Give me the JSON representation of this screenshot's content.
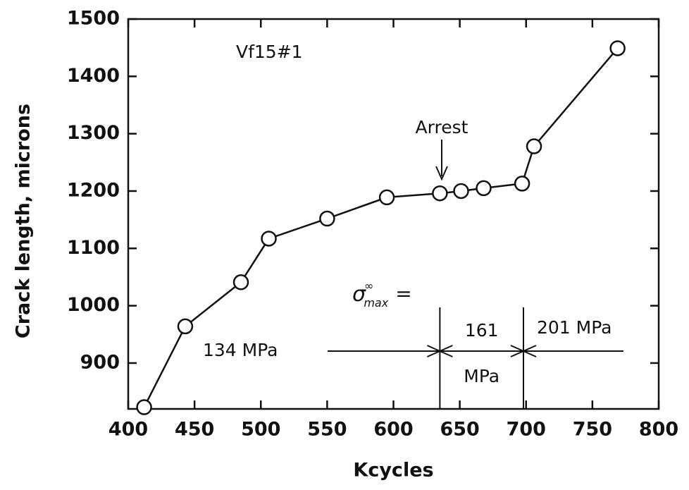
{
  "chart_data": {
    "type": "line",
    "xlabel": "Kcycles",
    "ylabel": "Crack length, microns",
    "x": [
      412,
      443,
      485,
      506,
      550,
      595,
      635,
      651,
      668,
      697,
      706,
      769
    ],
    "values": [
      823,
      964,
      1041,
      1117,
      1152,
      1189,
      1196,
      1200,
      1205,
      1213,
      1278,
      1449
    ],
    "xlim": [
      400,
      800
    ],
    "ylim": [
      820,
      1500
    ],
    "xticks": [
      400,
      450,
      500,
      550,
      600,
      650,
      700,
      750,
      800
    ],
    "yticks": [
      900,
      1000,
      1100,
      1200,
      1300,
      1400,
      1500
    ],
    "color": "#111111",
    "specimen": "Vf15#1",
    "arrest_label": "Arrest",
    "stress_label": {
      "symbol": "σ",
      "sup": "∞",
      "sub": "max",
      "eq": "="
    },
    "stress_changes": [
      635,
      698
    ],
    "stress_levels": [
      "134 MPa",
      "161",
      "MPa",
      "201 MPa"
    ]
  }
}
